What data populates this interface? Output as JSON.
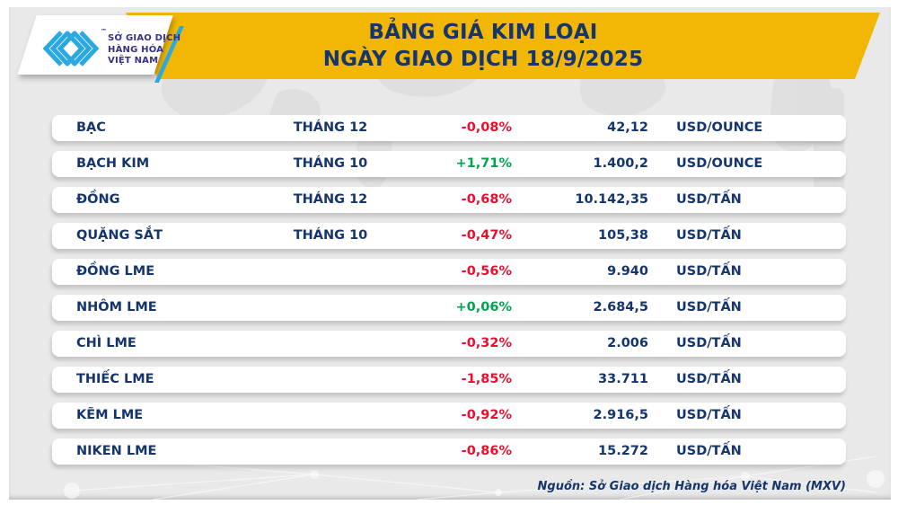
{
  "header": {
    "title_line1": "BẢNG GIÁ KIM LOẠI",
    "title_line2": "NGÀY GIAO DỊCH 18/9/2025",
    "logo": {
      "org_line1": "SỞ GIAO DỊCH",
      "org_line2": "HÀNG HÓA",
      "org_line3": "VIỆT NAM",
      "trademark": "™",
      "mark_icon": "mxv-chevron-logo"
    }
  },
  "table": {
    "rows": [
      {
        "name": "BẠC",
        "month": "THÁNG 12",
        "change": "-0,08%",
        "direction": "down",
        "price": "42,12",
        "unit": "USD/OUNCE"
      },
      {
        "name": "BẠCH KIM",
        "month": "THÁNG 10",
        "change": "+1,71%",
        "direction": "up",
        "price": "1.400,2",
        "unit": "USD/OUNCE"
      },
      {
        "name": "ĐỒNG",
        "month": "THÁNG 12",
        "change": "-0,68%",
        "direction": "down",
        "price": "10.142,35",
        "unit": "USD/TẤN"
      },
      {
        "name": "QUẶNG SẮT",
        "month": "THÁNG 10",
        "change": "-0,47%",
        "direction": "down",
        "price": "105,38",
        "unit": "USD/TẤN"
      },
      {
        "name": "ĐỒNG LME",
        "month": "",
        "change": "-0,56%",
        "direction": "down",
        "price": "9.940",
        "unit": "USD/TẤN"
      },
      {
        "name": "NHÔM LME",
        "month": "",
        "change": "+0,06%",
        "direction": "up",
        "price": "2.684,5",
        "unit": "USD/TẤN"
      },
      {
        "name": "CHÌ LME",
        "month": "",
        "change": "-0,32%",
        "direction": "down",
        "price": "2.006",
        "unit": "USD/TẤN"
      },
      {
        "name": "THIẾC LME",
        "month": "",
        "change": "-1,85%",
        "direction": "down",
        "price": "33.711",
        "unit": "USD/TẤN"
      },
      {
        "name": "KẼM LME",
        "month": "",
        "change": "-0,92%",
        "direction": "down",
        "price": "2.916,5",
        "unit": "USD/TẤN"
      },
      {
        "name": "NIKEN LME",
        "month": "",
        "change": "-0,86%",
        "direction": "down",
        "price": "15.272",
        "unit": "USD/TẤN"
      }
    ]
  },
  "footer": {
    "source": "Nguồn: Sở Giao dịch Hàng hóa Việt Nam (MXV)"
  },
  "colors": {
    "accent": "#F2B705",
    "navy": "#16356D",
    "red": "#E8112D",
    "green": "#00A44F",
    "logo_blue": "#2BA8E0",
    "logo_text": "#35318A"
  },
  "chart_data": {
    "type": "table",
    "title": "BẢNG GIÁ KIM LOẠI NGÀY GIAO DỊCH 18/9/2025",
    "columns": [
      "commodity",
      "contract_month",
      "change_percent",
      "price",
      "unit"
    ],
    "rows": [
      [
        "BẠC",
        "THÁNG 12",
        "-0,08%",
        "42,12",
        "USD/OUNCE"
      ],
      [
        "BẠCH KIM",
        "THÁNG 10",
        "+1,71%",
        "1.400,2",
        "USD/OUNCE"
      ],
      [
        "ĐỒNG",
        "THÁNG 12",
        "-0,68%",
        "10.142,35",
        "USD/TẤN"
      ],
      [
        "QUẶNG SẮT",
        "THÁNG 10",
        "-0,47%",
        "105,38",
        "USD/TẤN"
      ],
      [
        "ĐỒNG LME",
        "",
        "-0,56%",
        "9.940",
        "USD/TẤN"
      ],
      [
        "NHÔM LME",
        "",
        "+0,06%",
        "2.684,5",
        "USD/TẤN"
      ],
      [
        "CHÌ LME",
        "",
        "-0,32%",
        "2.006",
        "USD/TẤN"
      ],
      [
        "THIẾC LME",
        "",
        "-1,85%",
        "33.711",
        "USD/TẤN"
      ],
      [
        "KẼM LME",
        "",
        "-0,92%",
        "2.916,5",
        "USD/TẤN"
      ],
      [
        "NIKEN LME",
        "",
        "-0,86%",
        "15.272",
        "USD/TẤN"
      ]
    ],
    "source_note": "Nguồn: Sở Giao dịch Hàng hóa Việt Nam (MXV)"
  }
}
